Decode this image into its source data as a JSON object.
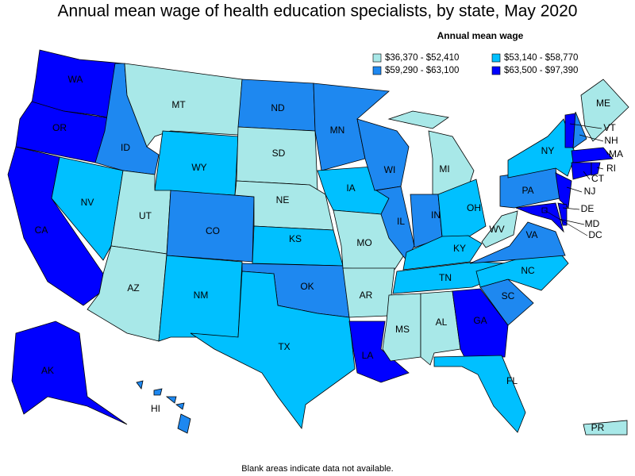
{
  "title": "Annual mean wage of health education specialists, by state, May 2020",
  "legend": {
    "title": "Annual mean wage",
    "items": [
      {
        "label": "$36,370 - $52,410",
        "color": "#a8e8e8"
      },
      {
        "label": "$53,140 - $58,770",
        "color": "#00c0ff"
      },
      {
        "label": "$59,290 - $63,100",
        "color": "#1e88f0"
      },
      {
        "label": "$63,500 - $97,390",
        "color": "#0000ff"
      }
    ]
  },
  "states": [
    {
      "label": "WA",
      "class": 3
    },
    {
      "label": "OR",
      "class": 3
    },
    {
      "label": "CA",
      "class": 3
    },
    {
      "label": "NV",
      "class": 1
    },
    {
      "label": "ID",
      "class": 2
    },
    {
      "label": "MT",
      "class": 0
    },
    {
      "label": "WY",
      "class": 1
    },
    {
      "label": "UT",
      "class": 0
    },
    {
      "label": "AZ",
      "class": 0
    },
    {
      "label": "CO",
      "class": 2
    },
    {
      "label": "NM",
      "class": 1
    },
    {
      "label": "ND",
      "class": 2
    },
    {
      "label": "SD",
      "class": 0
    },
    {
      "label": "NE",
      "class": 0
    },
    {
      "label": "KS",
      "class": 1
    },
    {
      "label": "OK",
      "class": 2
    },
    {
      "label": "TX",
      "class": 1
    },
    {
      "label": "MN",
      "class": 2
    },
    {
      "label": "IA",
      "class": 1
    },
    {
      "label": "MO",
      "class": 0
    },
    {
      "label": "AR",
      "class": 0
    },
    {
      "label": "LA",
      "class": 3
    },
    {
      "label": "WI",
      "class": 2
    },
    {
      "label": "IL",
      "class": 2
    },
    {
      "label": "MI",
      "class": 0
    },
    {
      "label": "IN",
      "class": 2
    },
    {
      "label": "OH",
      "class": 1
    },
    {
      "label": "KY",
      "class": 1
    },
    {
      "label": "TN",
      "class": 1
    },
    {
      "label": "MS",
      "class": 0
    },
    {
      "label": "AL",
      "class": 0
    },
    {
      "label": "GA",
      "class": 3
    },
    {
      "label": "FL",
      "class": 1
    },
    {
      "label": "SC",
      "class": 2
    },
    {
      "label": "NC",
      "class": 1
    },
    {
      "label": "VA",
      "class": 2
    },
    {
      "label": "WV",
      "class": 0
    },
    {
      "label": "PA",
      "class": 2
    },
    {
      "label": "NY",
      "class": 1
    },
    {
      "label": "NJ",
      "class": 3
    },
    {
      "label": "MD",
      "class": 3
    },
    {
      "label": "DE",
      "class": 3
    },
    {
      "label": "DC",
      "class": 3
    },
    {
      "label": "VT",
      "class": 3
    },
    {
      "label": "NH",
      "class": 2
    },
    {
      "label": "ME",
      "class": 0
    },
    {
      "label": "MA",
      "class": 3
    },
    {
      "label": "CT",
      "class": 3
    },
    {
      "label": "RI",
      "class": 3
    },
    {
      "label": "AK",
      "class": 3
    },
    {
      "label": "HI",
      "class": 2
    },
    {
      "label": "PR",
      "class": 0
    }
  ],
  "footnote": "Blank areas indicate data not available."
}
